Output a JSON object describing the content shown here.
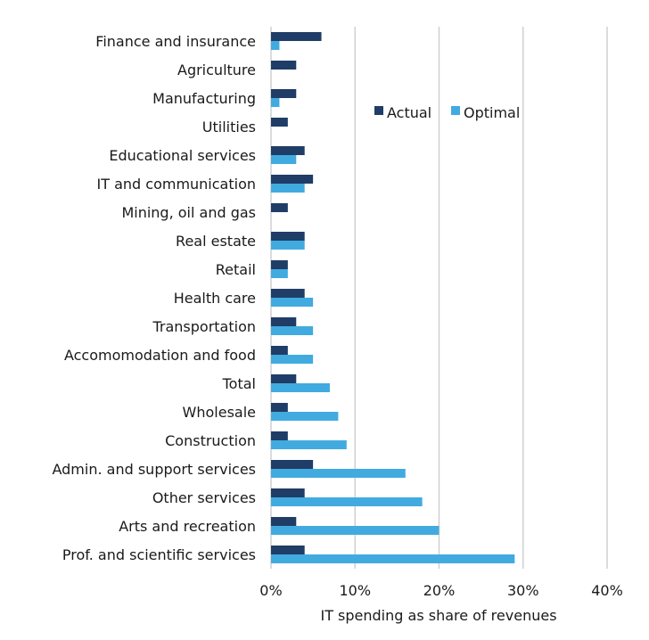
{
  "chart_data": {
    "type": "bar",
    "orientation": "horizontal",
    "title": "",
    "xlabel": "IT spending as share of revenues",
    "ylabel": "",
    "xlim": [
      0,
      40
    ],
    "x_ticks": [
      0,
      10,
      20,
      30,
      40
    ],
    "x_tick_labels": [
      "0%",
      "10%",
      "20%",
      "30%",
      "40%"
    ],
    "grid": "vertical",
    "legend_position": "top-right",
    "categories": [
      "Finance and insurance",
      "Agriculture",
      "Manufacturing",
      "Utilities",
      "Educational services",
      "IT and communication",
      "Mining, oil and gas",
      "Real estate",
      "Retail",
      "Health care",
      "Transportation",
      "Accomomodation and food",
      "Total",
      "Wholesale",
      "Construction",
      "Admin. and support services",
      "Other services",
      "Arts and recreation",
      "Prof. and scientific services"
    ],
    "series": [
      {
        "name": "Actual",
        "color": "#1f3d66",
        "values": [
          6,
          3,
          3,
          2,
          4,
          5,
          2,
          4,
          2,
          4,
          3,
          2,
          3,
          2,
          2,
          5,
          4,
          3,
          4
        ]
      },
      {
        "name": "Optimal",
        "color": "#41abe0",
        "values": [
          1,
          0,
          1,
          0,
          3,
          4,
          0,
          4,
          2,
          5,
          5,
          5,
          7,
          8,
          9,
          16,
          18,
          20,
          29
        ]
      }
    ]
  }
}
